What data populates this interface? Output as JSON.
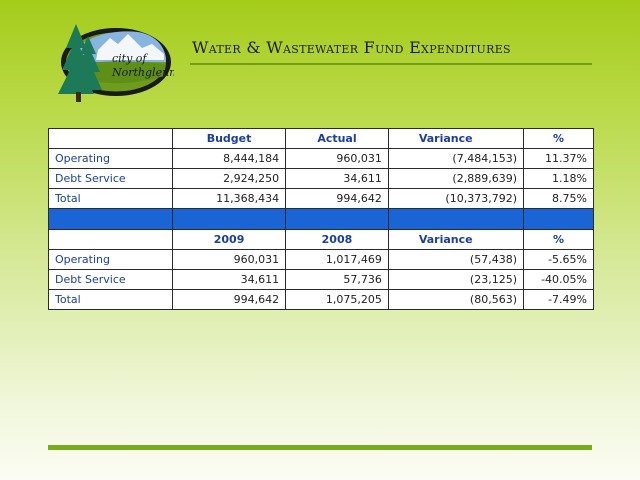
{
  "header": {
    "title": "Water & Wastewater Fund Expenditures",
    "logo_text_line1": "city of",
    "logo_text_line2": "Northglenn"
  },
  "table1": {
    "headers": [
      "",
      "Budget",
      "Actual",
      "Variance",
      "%"
    ],
    "rows": [
      {
        "label": "Operating",
        "c1": "8,444,184",
        "c2": "960,031",
        "c3": "(7,484,153)",
        "c4": "11.37%"
      },
      {
        "label": "Debt Service",
        "c1": "2,924,250",
        "c2": "34,611",
        "c3": "(2,889,639)",
        "c4": "1.18%"
      },
      {
        "label": "Total",
        "c1": "11,368,434",
        "c2": "994,642",
        "c3": "(10,373,792)",
        "c4": "8.75%"
      }
    ]
  },
  "table2": {
    "headers": [
      "",
      "2009",
      "2008",
      "Variance",
      "%"
    ],
    "rows": [
      {
        "label": "Operating",
        "c1": "960,031",
        "c2": "1,017,469",
        "c3": "(57,438)",
        "c4": "-5.65%"
      },
      {
        "label": "Debt Service",
        "c1": "34,611",
        "c2": "57,736",
        "c3": "(23,125)",
        "c4": "-40.05%"
      },
      {
        "label": "Total",
        "c1": "994,642",
        "c2": "1,075,205",
        "c3": "(80,563)",
        "c4": "-7.49%"
      }
    ]
  },
  "colors": {
    "accent_blue": "#1a64d6",
    "label_blue": "#1b3f9e",
    "rule_green": "#79ac1d"
  }
}
